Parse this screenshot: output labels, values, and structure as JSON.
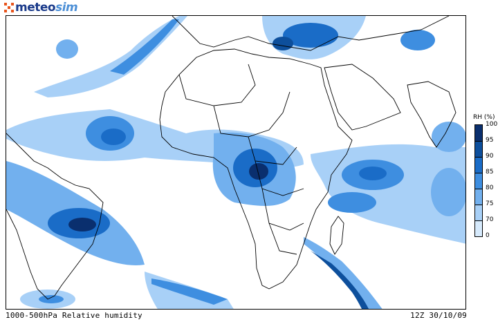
{
  "logo": {
    "part1": "meteo",
    "part2": "sim",
    "mark_color": "#e8541c",
    "text_color": "#1a3a8a",
    "accent_color": "#4c8fd6"
  },
  "footer": {
    "left": "1000-500hPa Relative humidity",
    "right": "12Z 30/10/09"
  },
  "legend": {
    "title": "RH (%)",
    "ticks": [
      "100",
      "95",
      "90",
      "85",
      "80",
      "75",
      "70",
      "0"
    ],
    "colors": [
      "#0a2f6e",
      "#0d4f9c",
      "#1a6cc7",
      "#3e8ee0",
      "#72b0ee",
      "#a8d0f7",
      "#d6eafc"
    ]
  }
}
